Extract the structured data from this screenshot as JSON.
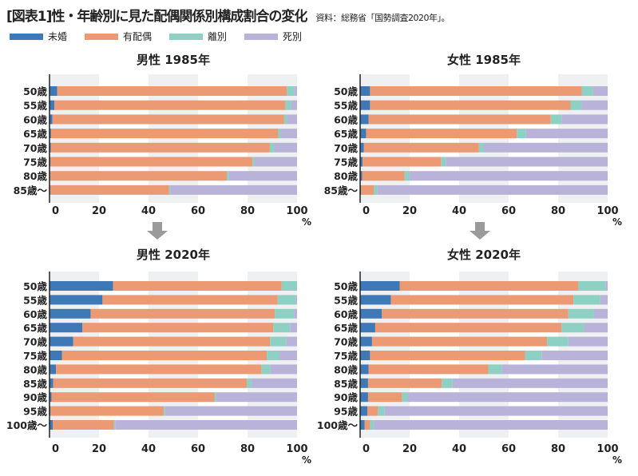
{
  "header": {
    "title": "[図表1]性・年齢別に見た配偶関係別構成割合の変化",
    "source": "資料：総務省「国勢調査2020年」。"
  },
  "colors": {
    "未婚": "#3e78b6",
    "有配偶": "#ec9a74",
    "離別": "#8ed0c3",
    "死別": "#bab3d9",
    "band": "#eef0f2"
  },
  "chart_data": [
    {
      "type": "bar",
      "orientation": "horizontal",
      "stacked": true,
      "title": "男性 1985年",
      "categories": [
        "50歳",
        "55歳",
        "60歳",
        "65歳",
        "70歳",
        "75歳",
        "80歳",
        "85歳〜"
      ],
      "series": [
        {
          "name": "未婚",
          "values": [
            3.1,
            2.0,
            1.2,
            0.6,
            0.5,
            0.4,
            0.3,
            0.3
          ]
        },
        {
          "name": "有配偶",
          "values": [
            92.8,
            93.3,
            93.6,
            91.8,
            88.5,
            81.6,
            71.3,
            48.0
          ]
        },
        {
          "name": "離別",
          "values": [
            2.9,
            2.4,
            1.2,
            1.0,
            1.8,
            0.9,
            0.9,
            0.5
          ]
        },
        {
          "name": "死別",
          "values": [
            1.2,
            2.3,
            4.0,
            6.6,
            9.2,
            17.1,
            27.5,
            51.2
          ]
        }
      ],
      "xticks": [
        "0",
        "20",
        "40",
        "60",
        "80",
        "100"
      ],
      "xunit": "%",
      "xlim": [
        0,
        100
      ]
    },
    {
      "type": "bar",
      "orientation": "horizontal",
      "stacked": true,
      "title": "女性 1985年",
      "categories": [
        "50歳",
        "55歳",
        "60歳",
        "65歳",
        "70歳",
        "75歳",
        "80歳",
        "85歳〜"
      ],
      "series": [
        {
          "name": "未婚",
          "values": [
            4.0,
            4.0,
            3.4,
            2.4,
            1.5,
            1.0,
            0.8,
            0.4
          ]
        },
        {
          "name": "有配偶",
          "values": [
            85.5,
            81.0,
            73.6,
            60.9,
            46.5,
            31.7,
            17.2,
            5.2
          ]
        },
        {
          "name": "離別",
          "values": [
            4.5,
            4.5,
            4.4,
            3.7,
            2.0,
            1.9,
            2.0,
            1.4
          ]
        },
        {
          "name": "死別",
          "values": [
            6.0,
            10.5,
            18.6,
            33.0,
            50.0,
            65.4,
            80.0,
            93.0
          ]
        }
      ],
      "xticks": [
        "0",
        "20",
        "40",
        "60",
        "80",
        "100"
      ],
      "xunit": "%",
      "xlim": [
        0,
        100
      ]
    },
    {
      "type": "bar",
      "orientation": "horizontal",
      "stacked": true,
      "title": "男性 2020年",
      "categories": [
        "50歳",
        "55歳",
        "60歳",
        "65歳",
        "70歳",
        "75歳",
        "80歳",
        "85歳",
        "90歳",
        "95歳",
        "100歳〜"
      ],
      "series": [
        {
          "name": "未婚",
          "values": [
            25.7,
            21.4,
            16.6,
            13.3,
            9.6,
            5.0,
            2.6,
            1.5,
            0.8,
            0.4,
            1.3
          ]
        },
        {
          "name": "有配偶",
          "values": [
            68.1,
            70.8,
            74.4,
            77.1,
            79.5,
            82.8,
            83.0,
            78.3,
            65.8,
            45.7,
            24.7
          ]
        },
        {
          "name": "離別",
          "values": [
            6.2,
            7.2,
            7.8,
            6.8,
            6.5,
            5.1,
            3.5,
            1.8,
            0.7,
            0.6,
            0.5
          ]
        },
        {
          "name": "死別",
          "values": [
            0.0,
            0.6,
            1.2,
            2.8,
            4.4,
            7.1,
            10.9,
            18.4,
            32.7,
            53.3,
            73.5
          ]
        }
      ],
      "xticks": [
        "0",
        "20",
        "40",
        "60",
        "80",
        "100"
      ],
      "xunit": "%",
      "xlim": [
        0,
        100
      ]
    },
    {
      "type": "bar",
      "orientation": "horizontal",
      "stacked": true,
      "title": "女性 2020年",
      "categories": [
        "50歳",
        "55歳",
        "60歳",
        "65歳",
        "70歳",
        "75歳",
        "80歳",
        "85歳",
        "90歳",
        "95歳",
        "100歳〜"
      ],
      "series": [
        {
          "name": "未婚",
          "values": [
            16.0,
            12.4,
            8.8,
            6.1,
            4.8,
            4.0,
            3.4,
            3.2,
            3.2,
            2.9,
            1.8
          ]
        },
        {
          "name": "有配偶",
          "values": [
            72.2,
            73.8,
            75.3,
            75.3,
            70.7,
            62.6,
            48.4,
            29.8,
            13.7,
            4.3,
            2.2
          ]
        },
        {
          "name": "離別",
          "values": [
            10.9,
            10.8,
            10.4,
            9.1,
            8.6,
            6.7,
            5.4,
            4.3,
            2.3,
            2.7,
            1.6
          ]
        },
        {
          "name": "死別",
          "values": [
            0.9,
            3.0,
            5.5,
            9.5,
            15.9,
            26.7,
            42.8,
            62.7,
            80.8,
            90.1,
            94.4
          ]
        }
      ],
      "xticks": [
        "0",
        "20",
        "40",
        "60",
        "80",
        "100"
      ],
      "xunit": "%",
      "xlim": [
        0,
        100
      ]
    }
  ],
  "legend": [
    "未婚",
    "有配偶",
    "離別",
    "死別"
  ]
}
